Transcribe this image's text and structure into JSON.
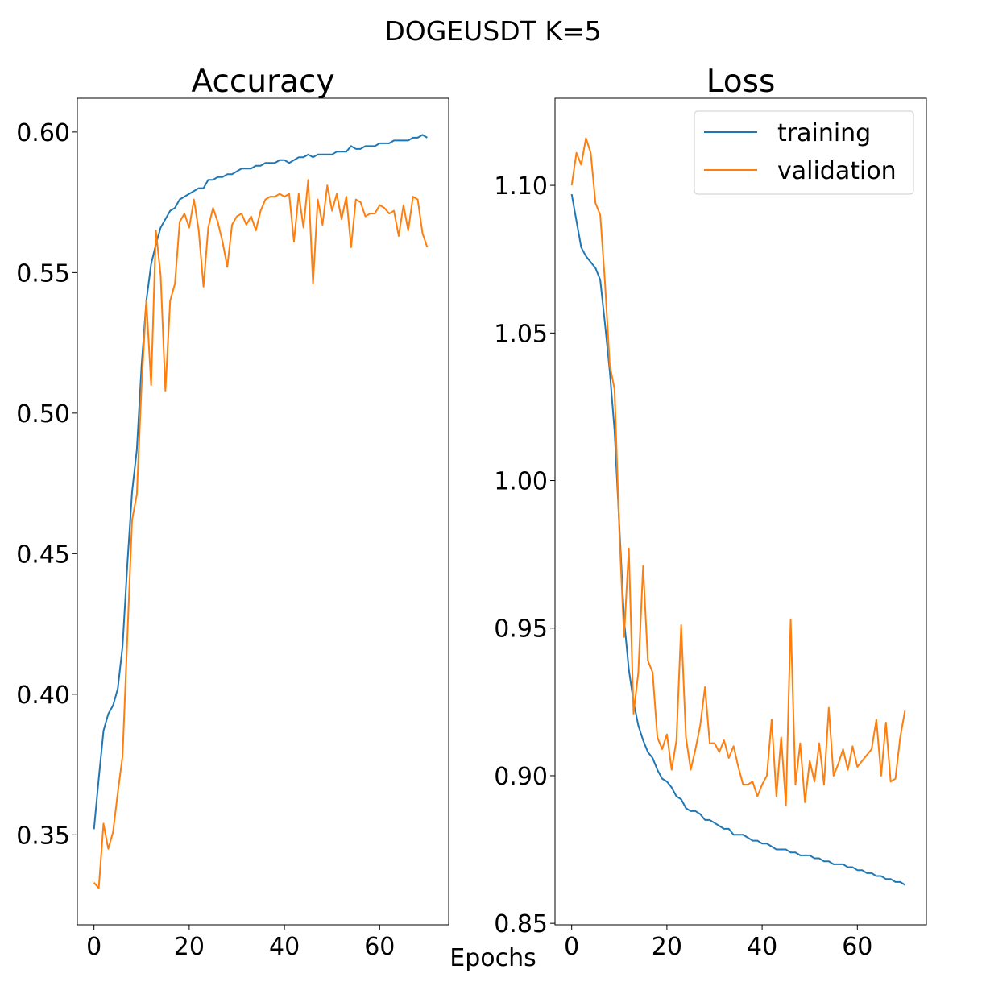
{
  "figure": {
    "suptitle": "DOGEUSDT K=5",
    "xlabel": "Epochs"
  },
  "colors": {
    "training": "#1f77b4",
    "validation": "#ff7f0e"
  },
  "chart_data": [
    {
      "type": "line",
      "title": "Accuracy",
      "xlim": [
        -3.5,
        74.5
      ],
      "ylim": [
        0.318,
        0.612
      ],
      "xticks": [
        0,
        20,
        40,
        60
      ],
      "xtick_labels": [
        "0",
        "20",
        "40",
        "60"
      ],
      "yticks": [
        0.35,
        0.4,
        0.45,
        0.5,
        0.55,
        0.6
      ],
      "ytick_labels": [
        "0.35",
        "0.40",
        "0.45",
        "0.50",
        "0.55",
        "0.60"
      ],
      "legend": false,
      "series": [
        {
          "name": "training",
          "x": [
            0,
            1,
            2,
            3,
            4,
            5,
            6,
            7,
            8,
            9,
            10,
            11,
            12,
            13,
            14,
            15,
            16,
            17,
            18,
            19,
            20,
            21,
            22,
            23,
            24,
            25,
            26,
            27,
            28,
            29,
            30,
            31,
            32,
            33,
            34,
            35,
            36,
            37,
            38,
            39,
            40,
            41,
            42,
            43,
            44,
            45,
            46,
            47,
            48,
            49,
            50,
            51,
            52,
            53,
            54,
            55,
            56,
            57,
            58,
            59,
            60,
            61,
            62,
            63,
            64,
            65,
            66,
            67,
            68,
            69,
            70
          ],
          "y": [
            0.352,
            0.37,
            0.387,
            0.393,
            0.396,
            0.402,
            0.417,
            0.446,
            0.472,
            0.487,
            0.517,
            0.54,
            0.553,
            0.56,
            0.566,
            0.569,
            0.572,
            0.573,
            0.576,
            0.577,
            0.578,
            0.579,
            0.58,
            0.58,
            0.583,
            0.583,
            0.584,
            0.584,
            0.585,
            0.585,
            0.586,
            0.587,
            0.587,
            0.587,
            0.588,
            0.588,
            0.589,
            0.589,
            0.589,
            0.59,
            0.59,
            0.589,
            0.59,
            0.591,
            0.591,
            0.592,
            0.591,
            0.592,
            0.592,
            0.592,
            0.592,
            0.593,
            0.593,
            0.593,
            0.595,
            0.594,
            0.594,
            0.595,
            0.595,
            0.595,
            0.596,
            0.596,
            0.596,
            0.597,
            0.597,
            0.597,
            0.597,
            0.598,
            0.598,
            0.599,
            0.598
          ]
        },
        {
          "name": "validation",
          "x": [
            0,
            1,
            2,
            3,
            4,
            5,
            6,
            7,
            8,
            9,
            10,
            11,
            12,
            13,
            14,
            15,
            16,
            17,
            18,
            19,
            20,
            21,
            22,
            23,
            24,
            25,
            26,
            27,
            28,
            29,
            30,
            31,
            32,
            33,
            34,
            35,
            36,
            37,
            38,
            39,
            40,
            41,
            42,
            43,
            44,
            45,
            46,
            47,
            48,
            49,
            50,
            51,
            52,
            53,
            54,
            55,
            56,
            57,
            58,
            59,
            60,
            61,
            62,
            63,
            64,
            65,
            66,
            67,
            68,
            69,
            70
          ],
          "y": [
            0.333,
            0.331,
            0.354,
            0.345,
            0.351,
            0.365,
            0.378,
            0.42,
            0.462,
            0.471,
            0.51,
            0.54,
            0.51,
            0.565,
            0.549,
            0.508,
            0.54,
            0.546,
            0.568,
            0.571,
            0.566,
            0.576,
            0.565,
            0.545,
            0.566,
            0.573,
            0.568,
            0.561,
            0.552,
            0.567,
            0.57,
            0.571,
            0.567,
            0.57,
            0.565,
            0.572,
            0.576,
            0.577,
            0.577,
            0.578,
            0.577,
            0.578,
            0.561,
            0.578,
            0.566,
            0.583,
            0.546,
            0.576,
            0.567,
            0.581,
            0.572,
            0.578,
            0.569,
            0.577,
            0.559,
            0.576,
            0.575,
            0.57,
            0.571,
            0.571,
            0.574,
            0.573,
            0.571,
            0.572,
            0.563,
            0.574,
            0.565,
            0.577,
            0.576,
            0.564,
            0.559
          ]
        }
      ]
    },
    {
      "type": "line",
      "title": "Loss",
      "xlim": [
        -3.5,
        74.5
      ],
      "ylim": [
        0.8495,
        1.1295
      ],
      "xticks": [
        0,
        20,
        40,
        60
      ],
      "xtick_labels": [
        "0",
        "20",
        "40",
        "60"
      ],
      "yticks": [
        0.85,
        0.9,
        0.95,
        1.0,
        1.05,
        1.1
      ],
      "ytick_labels": [
        "0.85",
        "0.90",
        "0.95",
        "1.00",
        "1.05",
        "1.10"
      ],
      "legend": true,
      "legend_location": "upper right",
      "series": [
        {
          "name": "training",
          "x": [
            0,
            1,
            2,
            3,
            4,
            5,
            6,
            7,
            8,
            9,
            10,
            11,
            12,
            13,
            14,
            15,
            16,
            17,
            18,
            19,
            20,
            21,
            22,
            23,
            24,
            25,
            26,
            27,
            28,
            29,
            30,
            31,
            32,
            33,
            34,
            35,
            36,
            37,
            38,
            39,
            40,
            41,
            42,
            43,
            44,
            45,
            46,
            47,
            48,
            49,
            50,
            51,
            52,
            53,
            54,
            55,
            56,
            57,
            58,
            59,
            60,
            61,
            62,
            63,
            64,
            65,
            66,
            67,
            68,
            69,
            70
          ],
          "y": [
            1.097,
            1.088,
            1.079,
            1.076,
            1.074,
            1.072,
            1.068,
            1.053,
            1.037,
            1.017,
            0.985,
            0.953,
            0.936,
            0.925,
            0.917,
            0.912,
            0.908,
            0.906,
            0.902,
            0.899,
            0.898,
            0.896,
            0.893,
            0.892,
            0.889,
            0.888,
            0.888,
            0.887,
            0.885,
            0.885,
            0.884,
            0.883,
            0.882,
            0.882,
            0.88,
            0.88,
            0.88,
            0.879,
            0.878,
            0.878,
            0.877,
            0.877,
            0.876,
            0.875,
            0.875,
            0.875,
            0.874,
            0.874,
            0.873,
            0.873,
            0.873,
            0.872,
            0.872,
            0.871,
            0.871,
            0.87,
            0.87,
            0.87,
            0.869,
            0.869,
            0.868,
            0.868,
            0.867,
            0.867,
            0.866,
            0.866,
            0.865,
            0.865,
            0.864,
            0.864,
            0.863
          ]
        },
        {
          "name": "validation",
          "x": [
            0,
            1,
            2,
            3,
            4,
            5,
            6,
            7,
            8,
            9,
            10,
            11,
            12,
            13,
            14,
            15,
            16,
            17,
            18,
            19,
            20,
            21,
            22,
            23,
            24,
            25,
            26,
            27,
            28,
            29,
            30,
            31,
            32,
            33,
            34,
            35,
            36,
            37,
            38,
            39,
            40,
            41,
            42,
            43,
            44,
            45,
            46,
            47,
            48,
            49,
            50,
            51,
            52,
            53,
            54,
            55,
            56,
            57,
            58,
            59,
            60,
            61,
            62,
            63,
            64,
            65,
            66,
            67,
            68,
            69,
            70
          ],
          "y": [
            1.1,
            1.111,
            1.107,
            1.116,
            1.111,
            1.094,
            1.09,
            1.067,
            1.039,
            1.031,
            0.983,
            0.947,
            0.977,
            0.921,
            0.935,
            0.971,
            0.939,
            0.935,
            0.913,
            0.909,
            0.914,
            0.902,
            0.912,
            0.951,
            0.913,
            0.902,
            0.909,
            0.917,
            0.93,
            0.911,
            0.911,
            0.908,
            0.912,
            0.906,
            0.91,
            0.903,
            0.897,
            0.897,
            0.898,
            0.893,
            0.897,
            0.9,
            0.919,
            0.893,
            0.913,
            0.89,
            0.953,
            0.897,
            0.911,
            0.891,
            0.905,
            0.898,
            0.911,
            0.897,
            0.923,
            0.9,
            0.904,
            0.909,
            0.902,
            0.91,
            0.903,
            0.905,
            0.907,
            0.909,
            0.919,
            0.9,
            0.918,
            0.898,
            0.899,
            0.913,
            0.922
          ]
        }
      ]
    }
  ]
}
